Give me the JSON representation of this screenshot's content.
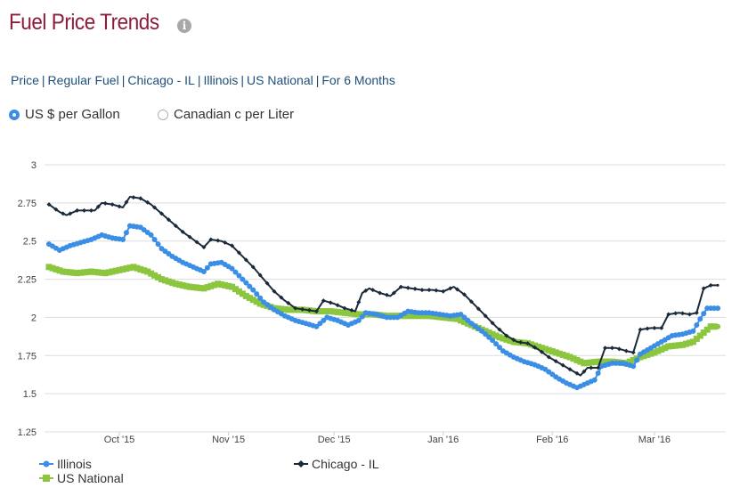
{
  "header": {
    "title": "Fuel Price Trends",
    "info_icon": "info-icon"
  },
  "breadcrumb": {
    "items": [
      "Price",
      "Regular Fuel",
      "Chicago - IL",
      "Illinois",
      "US National",
      "For 6 Months"
    ],
    "separator": "|"
  },
  "units": {
    "options": [
      {
        "label": "US $ per Gallon",
        "selected": true
      },
      {
        "label": "Canadian c per Liter",
        "selected": false
      }
    ]
  },
  "colors": {
    "title": "#8c1c3a",
    "illinois": "#3a8ee6",
    "chicago": "#1b2a3a",
    "us_national": "#8cc63f",
    "grid": "#dddddd",
    "link": "#1e4f7a"
  },
  "chart_data": {
    "type": "line",
    "title": "",
    "xlabel": "",
    "ylabel": "",
    "ylim": [
      1.25,
      3
    ],
    "yticks": [
      "1.25",
      "1.5",
      "1.75",
      "2",
      "2.25",
      "2.5",
      "2.75",
      "3"
    ],
    "x_tick_labels": [
      "Oct '15",
      "Nov '15",
      "Dec '15",
      "Jan '16",
      "Feb '16",
      "Mar '16"
    ],
    "x_tick_days": [
      20,
      51,
      81,
      112,
      143,
      172
    ],
    "x_range_days": [
      0,
      191
    ],
    "series": [
      {
        "name": "Illinois",
        "marker": "circle",
        "points": [
          [
            0,
            2.48
          ],
          [
            3,
            2.44
          ],
          [
            6,
            2.47
          ],
          [
            9,
            2.49
          ],
          [
            12,
            2.51
          ],
          [
            15,
            2.54
          ],
          [
            18,
            2.52
          ],
          [
            21,
            2.51
          ],
          [
            23,
            2.6
          ],
          [
            26,
            2.59
          ],
          [
            29,
            2.54
          ],
          [
            32,
            2.45
          ],
          [
            35,
            2.4
          ],
          [
            38,
            2.36
          ],
          [
            41,
            2.33
          ],
          [
            44,
            2.3
          ],
          [
            46,
            2.35
          ],
          [
            49,
            2.36
          ],
          [
            52,
            2.32
          ],
          [
            55,
            2.25
          ],
          [
            58,
            2.18
          ],
          [
            61,
            2.1
          ],
          [
            64,
            2.05
          ],
          [
            67,
            2.01
          ],
          [
            70,
            1.98
          ],
          [
            73,
            1.96
          ],
          [
            76,
            1.94
          ],
          [
            79,
            2.0
          ],
          [
            82,
            1.98
          ],
          [
            85,
            1.95
          ],
          [
            88,
            1.98
          ],
          [
            90,
            2.03
          ],
          [
            93,
            2.02
          ],
          [
            96,
            2.0
          ],
          [
            99,
            2.0
          ],
          [
            102,
            2.04
          ],
          [
            105,
            2.03
          ],
          [
            108,
            2.03
          ],
          [
            111,
            2.02
          ],
          [
            114,
            2.01
          ],
          [
            117,
            2.02
          ],
          [
            120,
            1.96
          ],
          [
            123,
            1.91
          ],
          [
            126,
            1.85
          ],
          [
            129,
            1.78
          ],
          [
            132,
            1.74
          ],
          [
            135,
            1.71
          ],
          [
            138,
            1.69
          ],
          [
            141,
            1.66
          ],
          [
            144,
            1.61
          ],
          [
            147,
            1.57
          ],
          [
            150,
            1.54
          ],
          [
            152,
            1.56
          ],
          [
            155,
            1.59
          ],
          [
            157,
            1.68
          ],
          [
            160,
            1.7
          ],
          [
            163,
            1.7
          ],
          [
            166,
            1.68
          ],
          [
            168,
            1.76
          ],
          [
            171,
            1.8
          ],
          [
            174,
            1.84
          ],
          [
            177,
            1.88
          ],
          [
            180,
            1.89
          ],
          [
            183,
            1.91
          ],
          [
            185,
            1.99
          ],
          [
            187,
            2.06
          ],
          [
            190,
            2.06
          ]
        ]
      },
      {
        "name": "Chicago - IL",
        "marker": "diamond",
        "points": [
          [
            0,
            2.74
          ],
          [
            3,
            2.69
          ],
          [
            5,
            2.67
          ],
          [
            8,
            2.7
          ],
          [
            11,
            2.7
          ],
          [
            13,
            2.7
          ],
          [
            15,
            2.75
          ],
          [
            18,
            2.74
          ],
          [
            21,
            2.72
          ],
          [
            23,
            2.79
          ],
          [
            26,
            2.78
          ],
          [
            29,
            2.74
          ],
          [
            32,
            2.68
          ],
          [
            35,
            2.62
          ],
          [
            38,
            2.56
          ],
          [
            41,
            2.51
          ],
          [
            44,
            2.46
          ],
          [
            46,
            2.51
          ],
          [
            49,
            2.5
          ],
          [
            52,
            2.47
          ],
          [
            55,
            2.4
          ],
          [
            58,
            2.33
          ],
          [
            61,
            2.25
          ],
          [
            64,
            2.17
          ],
          [
            67,
            2.11
          ],
          [
            70,
            2.06
          ],
          [
            73,
            2.05
          ],
          [
            76,
            2.04
          ],
          [
            78,
            2.11
          ],
          [
            81,
            2.09
          ],
          [
            84,
            2.06
          ],
          [
            87,
            2.04
          ],
          [
            89,
            2.16
          ],
          [
            91,
            2.19
          ],
          [
            94,
            2.16
          ],
          [
            97,
            2.14
          ],
          [
            100,
            2.2
          ],
          [
            103,
            2.19
          ],
          [
            106,
            2.18
          ],
          [
            109,
            2.18
          ],
          [
            112,
            2.17
          ],
          [
            115,
            2.2
          ],
          [
            118,
            2.15
          ],
          [
            121,
            2.08
          ],
          [
            124,
            2.01
          ],
          [
            127,
            1.94
          ],
          [
            130,
            1.88
          ],
          [
            133,
            1.84
          ],
          [
            136,
            1.83
          ],
          [
            139,
            1.79
          ],
          [
            142,
            1.74
          ],
          [
            145,
            1.7
          ],
          [
            148,
            1.66
          ],
          [
            151,
            1.62
          ],
          [
            153,
            1.67
          ],
          [
            156,
            1.67
          ],
          [
            158,
            1.8
          ],
          [
            161,
            1.8
          ],
          [
            164,
            1.78
          ],
          [
            166,
            1.77
          ],
          [
            168,
            1.92
          ],
          [
            171,
            1.93
          ],
          [
            174,
            1.93
          ],
          [
            176,
            2.02
          ],
          [
            179,
            2.03
          ],
          [
            182,
            2.02
          ],
          [
            184,
            2.03
          ],
          [
            186,
            2.19
          ],
          [
            188,
            2.21
          ],
          [
            190,
            2.21
          ]
        ]
      },
      {
        "name": "US National",
        "marker": "square",
        "points": [
          [
            0,
            2.33
          ],
          [
            4,
            2.3
          ],
          [
            8,
            2.29
          ],
          [
            12,
            2.3
          ],
          [
            16,
            2.29
          ],
          [
            20,
            2.31
          ],
          [
            24,
            2.33
          ],
          [
            28,
            2.3
          ],
          [
            32,
            2.25
          ],
          [
            36,
            2.22
          ],
          [
            40,
            2.2
          ],
          [
            44,
            2.19
          ],
          [
            48,
            2.22
          ],
          [
            52,
            2.2
          ],
          [
            56,
            2.14
          ],
          [
            60,
            2.09
          ],
          [
            64,
            2.06
          ],
          [
            68,
            2.05
          ],
          [
            72,
            2.05
          ],
          [
            76,
            2.04
          ],
          [
            80,
            2.04
          ],
          [
            84,
            2.03
          ],
          [
            88,
            2.02
          ],
          [
            92,
            2.02
          ],
          [
            96,
            2.01
          ],
          [
            100,
            2.01
          ],
          [
            104,
            2.01
          ],
          [
            108,
            2.01
          ],
          [
            112,
            2.0
          ],
          [
            116,
            1.99
          ],
          [
            120,
            1.95
          ],
          [
            124,
            1.91
          ],
          [
            128,
            1.87
          ],
          [
            132,
            1.84
          ],
          [
            136,
            1.83
          ],
          [
            140,
            1.8
          ],
          [
            144,
            1.77
          ],
          [
            148,
            1.74
          ],
          [
            152,
            1.7
          ],
          [
            156,
            1.71
          ],
          [
            160,
            1.71
          ],
          [
            164,
            1.7
          ],
          [
            168,
            1.74
          ],
          [
            172,
            1.77
          ],
          [
            176,
            1.81
          ],
          [
            180,
            1.82
          ],
          [
            183,
            1.84
          ],
          [
            186,
            1.9
          ],
          [
            188,
            1.94
          ],
          [
            190,
            1.94
          ]
        ]
      }
    ],
    "legend": {
      "position": "bottom-left",
      "items": [
        {
          "label": "Illinois",
          "color": "#3a8ee6"
        },
        {
          "label": "Chicago - IL",
          "color": "#1b2a3a"
        },
        {
          "label": "US National",
          "color": "#8cc63f"
        }
      ]
    }
  }
}
